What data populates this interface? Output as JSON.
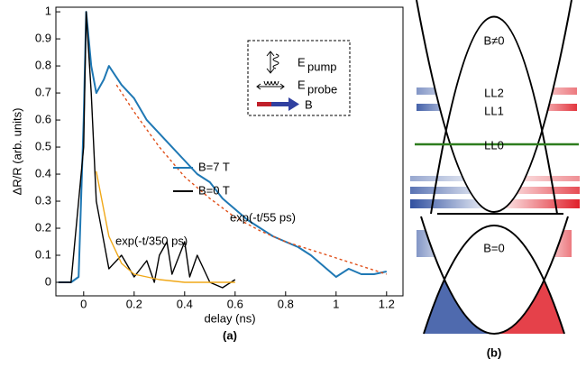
{
  "chart_data": {
    "type": "line",
    "xlabel": "delay (ns)",
    "ylabel": "ΔR/R (arb. units)",
    "panel_label": "(a)",
    "xlim": [
      -0.11,
      1.265
    ],
    "ylim": [
      -0.05,
      1.017
    ],
    "xticks": [
      0,
      0.2,
      0.4,
      0.6,
      0.8,
      1,
      1.2
    ],
    "yticks": [
      0,
      0.1,
      0.2,
      0.3,
      0.4,
      0.5,
      0.6,
      0.7,
      0.8,
      0.9,
      1
    ],
    "series": [
      {
        "name": "B=7 T",
        "color": "#1f78b4",
        "style": "solid",
        "legend": true,
        "x": [
          -0.1,
          -0.05,
          -0.02,
          0,
          0.01,
          0.03,
          0.05,
          0.08,
          0.1,
          0.15,
          0.2,
          0.25,
          0.3,
          0.35,
          0.4,
          0.45,
          0.5,
          0.55,
          0.6,
          0.65,
          0.7,
          0.75,
          0.8,
          0.85,
          0.9,
          0.95,
          1,
          1.05,
          1.1,
          1.15,
          1.2
        ],
        "values": [
          0,
          0,
          0.02,
          0.6,
          1,
          0.8,
          0.7,
          0.75,
          0.8,
          0.73,
          0.68,
          0.6,
          0.55,
          0.5,
          0.45,
          0.4,
          0.37,
          0.31,
          0.27,
          0.23,
          0.2,
          0.17,
          0.15,
          0.13,
          0.1,
          0.06,
          0.02,
          0.05,
          0.03,
          0.03,
          0.04
        ]
      },
      {
        "name": "B=0 T",
        "color": "#000000",
        "style": "solid",
        "legend": true,
        "x": [
          -0.1,
          -0.05,
          0,
          0.01,
          0.03,
          0.05,
          0.08,
          0.1,
          0.15,
          0.2,
          0.25,
          0.28,
          0.3,
          0.33,
          0.35,
          0.4,
          0.42,
          0.45,
          0.5,
          0.55,
          0.6
        ],
        "values": [
          0,
          0,
          0.5,
          1,
          0.7,
          0.3,
          0.15,
          0.05,
          0.1,
          0.02,
          0.08,
          0,
          0.1,
          0.15,
          0.03,
          0.15,
          0.02,
          0.1,
          0,
          -0.02,
          0.01
        ]
      },
      {
        "name": "exp(-t/55 ps)",
        "color": "#f0a818",
        "style": "solid",
        "legend": false,
        "x": [
          0.05,
          0.1,
          0.15,
          0.2,
          0.3,
          0.4,
          0.6
        ],
        "values": [
          0.41,
          0.17,
          0.07,
          0.03,
          0.01,
          0,
          0
        ]
      },
      {
        "name": "exp(-t/350 ps)",
        "color": "#e0501a",
        "style": "dashed",
        "legend": false,
        "x": [
          0.13,
          0.2,
          0.3,
          0.4,
          0.5,
          0.6,
          0.7,
          0.8,
          0.9,
          1,
          1.1,
          1.2
        ],
        "values": [
          0.73,
          0.63,
          0.5,
          0.39,
          0.31,
          0.24,
          0.19,
          0.15,
          0.12,
          0.09,
          0.06,
          0.03
        ]
      }
    ],
    "inset": {
      "pump_symbol": "E",
      "pump_sub": "pump",
      "probe_symbol": "E",
      "probe_sub": "probe",
      "field": "B"
    }
  },
  "diagram": {
    "field_on": "B≠0",
    "levels": [
      "LL2",
      "LL1",
      "LL0"
    ],
    "field_off": "B=0",
    "panel_label": "(b)"
  }
}
